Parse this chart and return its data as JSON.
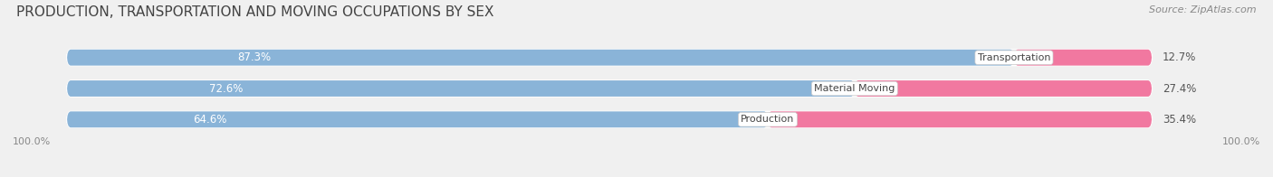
{
  "title": "PRODUCTION, TRANSPORTATION AND MOVING OCCUPATIONS BY SEX",
  "source": "Source: ZipAtlas.com",
  "categories": [
    "Transportation",
    "Material Moving",
    "Production"
  ],
  "male_pct": [
    87.3,
    72.6,
    64.6
  ],
  "female_pct": [
    12.7,
    27.4,
    35.4
  ],
  "male_color": "#8ab4d8",
  "female_color": "#f178a0",
  "male_color_light": "#b8d0e8",
  "bg_color": "#f0f0f0",
  "bar_bg_color": "#e2e2e2",
  "title_color": "#444444",
  "source_color": "#888888",
  "label_color": "#ffffff",
  "pct_color_right": "#555555",
  "cat_color": "#444444",
  "title_fontsize": 11,
  "source_fontsize": 8,
  "bar_label_fontsize": 8.5,
  "cat_fontsize": 8,
  "pct_fontsize": 8.5,
  "axis_fontsize": 8,
  "bar_height": 0.52,
  "figsize": [
    14.06,
    1.96
  ],
  "dpi": 100,
  "xlim_left": -5,
  "xlim_right": 110
}
